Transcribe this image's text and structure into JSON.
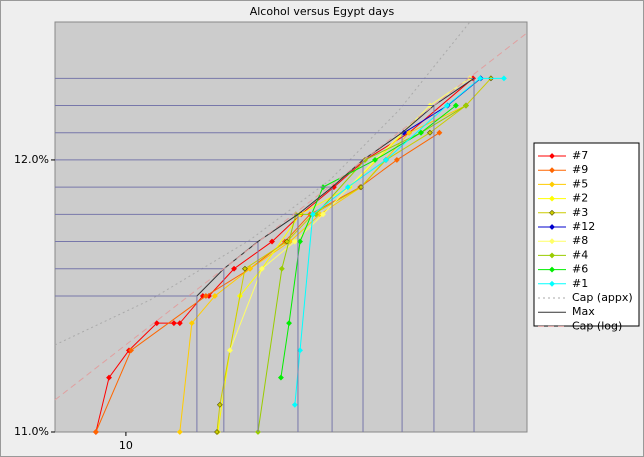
{
  "chart_data": {
    "type": "line",
    "title": "Alcohol versus Egypt days",
    "xlog": true,
    "xlim": [
      7.92,
      37.4
    ],
    "xticks": [
      10
    ],
    "ylim": [
      11.0,
      12.507
    ],
    "yticks": [
      {
        "value": 11.0,
        "label": "11.0%"
      },
      {
        "value": 12.0,
        "label": "12.0%"
      }
    ],
    "legend": "right",
    "series": [
      {
        "name": "#7",
        "color": "#ff0000",
        "x": [
          9.06,
          9.46,
          10.1,
          11.07,
          11.71,
          11.94,
          12.88,
          13.14,
          14.27,
          16.17,
          17.78,
          19.82,
          21.95,
          25.38,
          31.32
        ],
        "values": [
          11.0,
          11.2,
          11.3,
          11.4,
          11.4,
          11.4,
          11.5,
          11.5,
          11.6,
          11.7,
          11.8,
          11.9,
          12.0,
          12.1,
          12.3
        ]
      },
      {
        "name": "#9",
        "color": "#ff6600",
        "x": [
          9.06,
          10.17,
          13.01,
          15.04,
          16.87,
          18.32,
          21.6,
          24.38,
          28.04
        ],
        "values": [
          11.0,
          11.3,
          11.5,
          11.6,
          11.7,
          11.8,
          11.9,
          12.0,
          12.1
        ]
      },
      {
        "name": "#5",
        "color": "#ffcc00",
        "x": [
          11.94,
          12.42,
          13.4,
          15.04,
          17.15,
          18.93,
          21.67,
          25.38,
          30.6
        ],
        "values": [
          11.0,
          11.4,
          11.5,
          11.6,
          11.7,
          11.8,
          11.9,
          12.1,
          12.2
        ]
      },
      {
        "name": "#2",
        "color": "#ffff00",
        "x": [
          13.53,
          14.08,
          14.55,
          15.64,
          17.73,
          20.87,
          24.95
        ],
        "values": [
          11.0,
          11.3,
          11.5,
          11.6,
          11.8,
          11.9,
          12.1
        ]
      },
      {
        "name": "#3",
        "color": "#cccc00",
        "x": [
          13.49,
          13.62,
          14.79,
          16.98,
          18.49,
          21.67,
          23.52,
          27.18,
          30.6,
          33.22
        ],
        "values": [
          11.0,
          11.1,
          11.6,
          11.7,
          11.8,
          11.9,
          12.0,
          12.1,
          12.2,
          12.3
        ]
      },
      {
        "name": "#12",
        "color": "#0000cc",
        "x": [
          24.95,
          28.8,
          32.12
        ],
        "values": [
          12.1,
          12.2,
          12.3
        ]
      },
      {
        "name": "#8",
        "color": "#ffff66",
        "x": [
          14.08,
          15.64,
          17.43,
          19.12,
          22.69,
          27.18,
          31.0
        ],
        "values": [
          11.3,
          11.6,
          11.7,
          11.8,
          12.0,
          12.2,
          12.3
        ]
      },
      {
        "name": "#4",
        "color": "#99cc00",
        "x": [
          15.44,
          16.7,
          17.49,
          18.68,
          21.95,
          26.39,
          30.6
        ],
        "values": [
          11.0,
          11.6,
          11.8,
          11.8,
          12.0,
          12.1,
          12.2
        ]
      },
      {
        "name": "#6",
        "color": "#00ee00",
        "x": [
          16.65,
          17.1,
          17.73,
          19.12,
          22.69,
          26.39,
          29.6
        ],
        "values": [
          11.2,
          11.4,
          11.7,
          11.9,
          12.0,
          12.1,
          12.2
        ]
      },
      {
        "name": "#1",
        "color": "#00ffff",
        "x": [
          17.43,
          17.73,
          18.49,
          20.75,
          23.52,
          28.74,
          32.05,
          34.67
        ],
        "values": [
          11.1,
          11.3,
          11.8,
          11.9,
          12.0,
          12.2,
          12.3,
          12.3
        ]
      },
      {
        "name": "Cap (appx)",
        "color": "#aaaaaa",
        "style": "dotted",
        "markers": false,
        "x": [
          7.92,
          10.82,
          15.04,
          19.56,
          24.57,
          28.04,
          31.0
        ],
        "values": [
          11.32,
          11.485,
          11.706,
          11.926,
          12.184,
          12.368,
          12.507
        ]
      },
      {
        "name": "Max",
        "color": "#333333",
        "markers": false,
        "droplines": "#7777aa",
        "x": [
          12.63,
          13.8,
          15.44,
          17.61,
          19.7,
          21.81,
          24.8,
          27.54,
          31.42
        ],
        "values": [
          11.5,
          11.6,
          11.7,
          11.8,
          11.9,
          12.0,
          12.1,
          12.2,
          12.3
        ]
      },
      {
        "name": "Cap (log)",
        "color": "#e0a0a0",
        "style": "dashed",
        "markers": false,
        "x": [
          7.92,
          37.4
        ],
        "values": [
          11.118,
          12.467
        ]
      }
    ]
  }
}
